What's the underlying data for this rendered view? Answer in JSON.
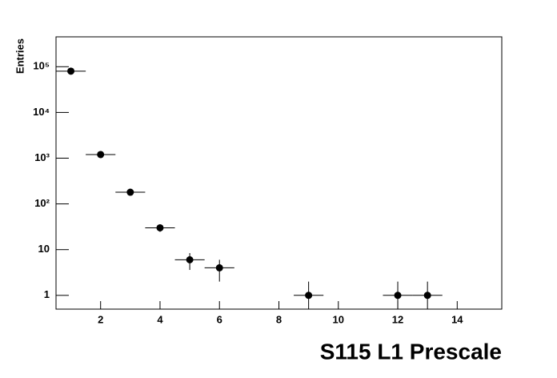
{
  "chart_data": {
    "type": "scatter",
    "title": "S115 L1 Prescale",
    "y_label": "Entries",
    "x": [
      1,
      2,
      3,
      4,
      5,
      6,
      9,
      12,
      13
    ],
    "xerr": 0.5,
    "series": [
      {
        "values": [
          80000,
          1200,
          180,
          30,
          6,
          4,
          1,
          1,
          1
        ],
        "errors": [
          283,
          35,
          13,
          5.5,
          2.4,
          2,
          1,
          1,
          1
        ],
        "color": "#000000"
      }
    ],
    "xlim": [
      0.5,
      15.5
    ],
    "xticks": [
      2,
      4,
      6,
      8,
      10,
      12,
      14
    ],
    "ylim": [
      0.5,
      450000
    ],
    "log_y": true,
    "yticks": [
      1,
      10,
      {
        "value": 100,
        "label": "10²"
      },
      {
        "value": 1000,
        "label": "10³"
      },
      {
        "value": 10000,
        "label": "10⁴"
      },
      {
        "value": 100000,
        "label": "10⁵"
      }
    ]
  }
}
